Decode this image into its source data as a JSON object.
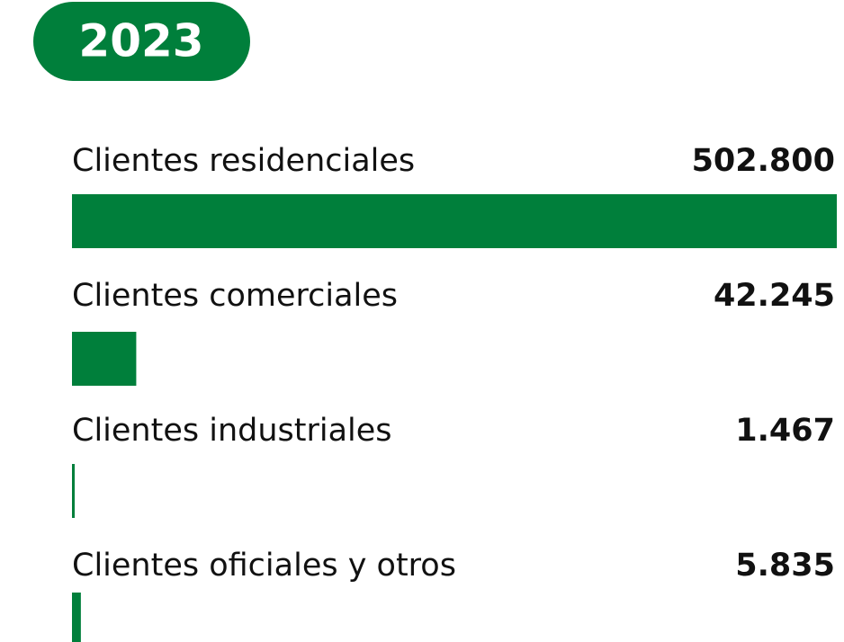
{
  "chart_data": {
    "type": "bar",
    "orientation": "horizontal",
    "title": "2023",
    "categories": [
      "Clientes residenciales",
      "Clientes comerciales",
      "Clientes industriales",
      "Clientes oficiales y otros"
    ],
    "values": [
      502800,
      42245,
      1467,
      5835
    ],
    "value_labels": [
      "502.800",
      "42.245",
      "1.467",
      "5.835"
    ],
    "color": "#007f3b"
  }
}
